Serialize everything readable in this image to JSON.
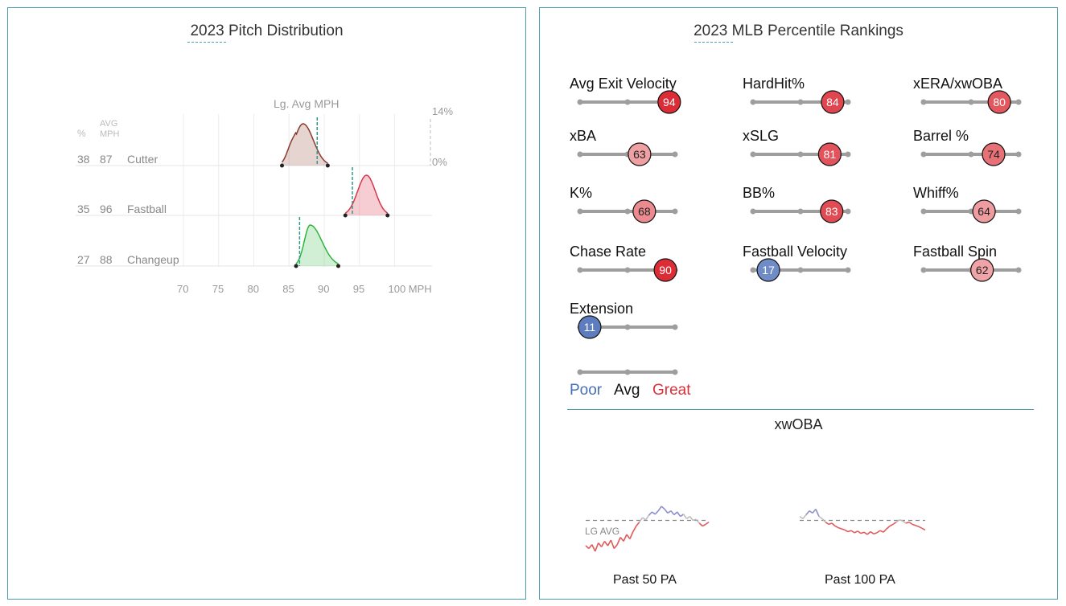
{
  "left": {
    "title": "2023 Pitch Distribution",
    "lg_avg_label": "Lg. Avg MPH",
    "pct_header": "%",
    "avg_header_1": "AVG",
    "avg_header_2": "MPH",
    "pct_max_label": "14%",
    "pct_min_label": "0%"
  },
  "right": {
    "title": "2023 MLB Percentile Rankings",
    "metrics": [
      {
        "label": "Avg Exit Velocity",
        "value": "94"
      },
      {
        "label": "HardHit%",
        "value": "84"
      },
      {
        "label": "xERA/xwOBA",
        "value": "80"
      },
      {
        "label": "xBA",
        "value": "63"
      },
      {
        "label": "xSLG",
        "value": "81"
      },
      {
        "label": "Barrel %",
        "value": "74"
      },
      {
        "label": "K%",
        "value": "68"
      },
      {
        "label": "BB%",
        "value": "83"
      },
      {
        "label": "Whiff%",
        "value": "64"
      },
      {
        "label": "Chase Rate",
        "value": "90"
      },
      {
        "label": "Fastball Velocity",
        "value": "17"
      },
      {
        "label": "Fastball Spin",
        "value": "62"
      },
      {
        "label": "Extension",
        "value": "11"
      }
    ],
    "legend": {
      "poor": "Poor",
      "avg": "Avg",
      "great": "Great"
    },
    "xwoba_title": "xwOBA",
    "lg_avg_text": "LG AVG",
    "past50_label": "Past 50 PA",
    "past100_label": "Past 100 PA"
  },
  "colors": {
    "border": "#4e9fae",
    "poor": "#4a6fb6",
    "great": "#d8313b",
    "cutter": "#8b3a2f",
    "fastball": "#d7374a",
    "changeup": "#2fb53c",
    "league_avg_line": "#2e9c8a",
    "slider_track": "#9e9e9e"
  },
  "chart_data": [
    {
      "type": "area",
      "title": "2023 Pitch Distribution",
      "xlabel": "MPH",
      "x_ticks": [
        70,
        75,
        80,
        85,
        90,
        95,
        100
      ],
      "xlim": [
        68,
        102
      ],
      "ylim_percent": [
        0,
        14
      ],
      "series": [
        {
          "name": "Cutter",
          "usage_pct": 38,
          "avg_mph": 87,
          "league_avg_mph": 89,
          "range": [
            84,
            90.5
          ],
          "peak_mph": 87,
          "color": "#8b3a2f"
        },
        {
          "name": "Fastball",
          "usage_pct": 35,
          "avg_mph": 96,
          "league_avg_mph": 94,
          "range": [
            93,
            99
          ],
          "peak_mph": 96,
          "color": "#d7374a"
        },
        {
          "name": "Changeup",
          "usage_pct": 27,
          "avg_mph": 88,
          "league_avg_mph": 86.5,
          "range": [
            86,
            92
          ],
          "peak_mph": 88,
          "color": "#2fb53c"
        }
      ]
    },
    {
      "type": "scatter",
      "title": "2023 MLB Percentile Rankings",
      "ylim": [
        1,
        100
      ],
      "categories": [
        "Avg Exit Velocity",
        "HardHit%",
        "xERA/xwOBA",
        "xBA",
        "xSLG",
        "Barrel %",
        "K%",
        "BB%",
        "Whiff%",
        "Chase Rate",
        "Fastball Velocity",
        "Fastball Spin",
        "Extension"
      ],
      "values": [
        94,
        84,
        80,
        63,
        81,
        74,
        68,
        83,
        64,
        90,
        17,
        62,
        11
      ]
    },
    {
      "type": "line",
      "title": "xwOBA",
      "series": [
        {
          "name": "Past 50 PA",
          "values": [
            0.31,
            0.305,
            0.312,
            0.3,
            0.315,
            0.308,
            0.318,
            0.31,
            0.32,
            0.305,
            0.312,
            0.325,
            0.318,
            0.33,
            0.322,
            0.335,
            0.345,
            0.352,
            0.36,
            0.356,
            0.364,
            0.37,
            0.366,
            0.372,
            0.38,
            0.375,
            0.368,
            0.372,
            0.365,
            0.37,
            0.362,
            0.366,
            0.358,
            0.362,
            0.355,
            0.357,
            0.35,
            0.345,
            0.348,
            0.352
          ]
        },
        {
          "name": "Past 100 PA",
          "values": [
            0.362,
            0.358,
            0.365,
            0.372,
            0.368,
            0.375,
            0.362,
            0.358,
            0.352,
            0.348,
            0.35,
            0.345,
            0.342,
            0.34,
            0.338,
            0.335,
            0.337,
            0.333,
            0.336,
            0.332,
            0.334,
            0.33,
            0.335,
            0.331,
            0.333,
            0.337,
            0.334,
            0.34,
            0.345,
            0.348,
            0.352,
            0.356,
            0.354,
            0.35,
            0.352,
            0.348,
            0.346,
            0.344,
            0.341,
            0.338
          ]
        }
      ],
      "league_average": 0.355
    }
  ]
}
